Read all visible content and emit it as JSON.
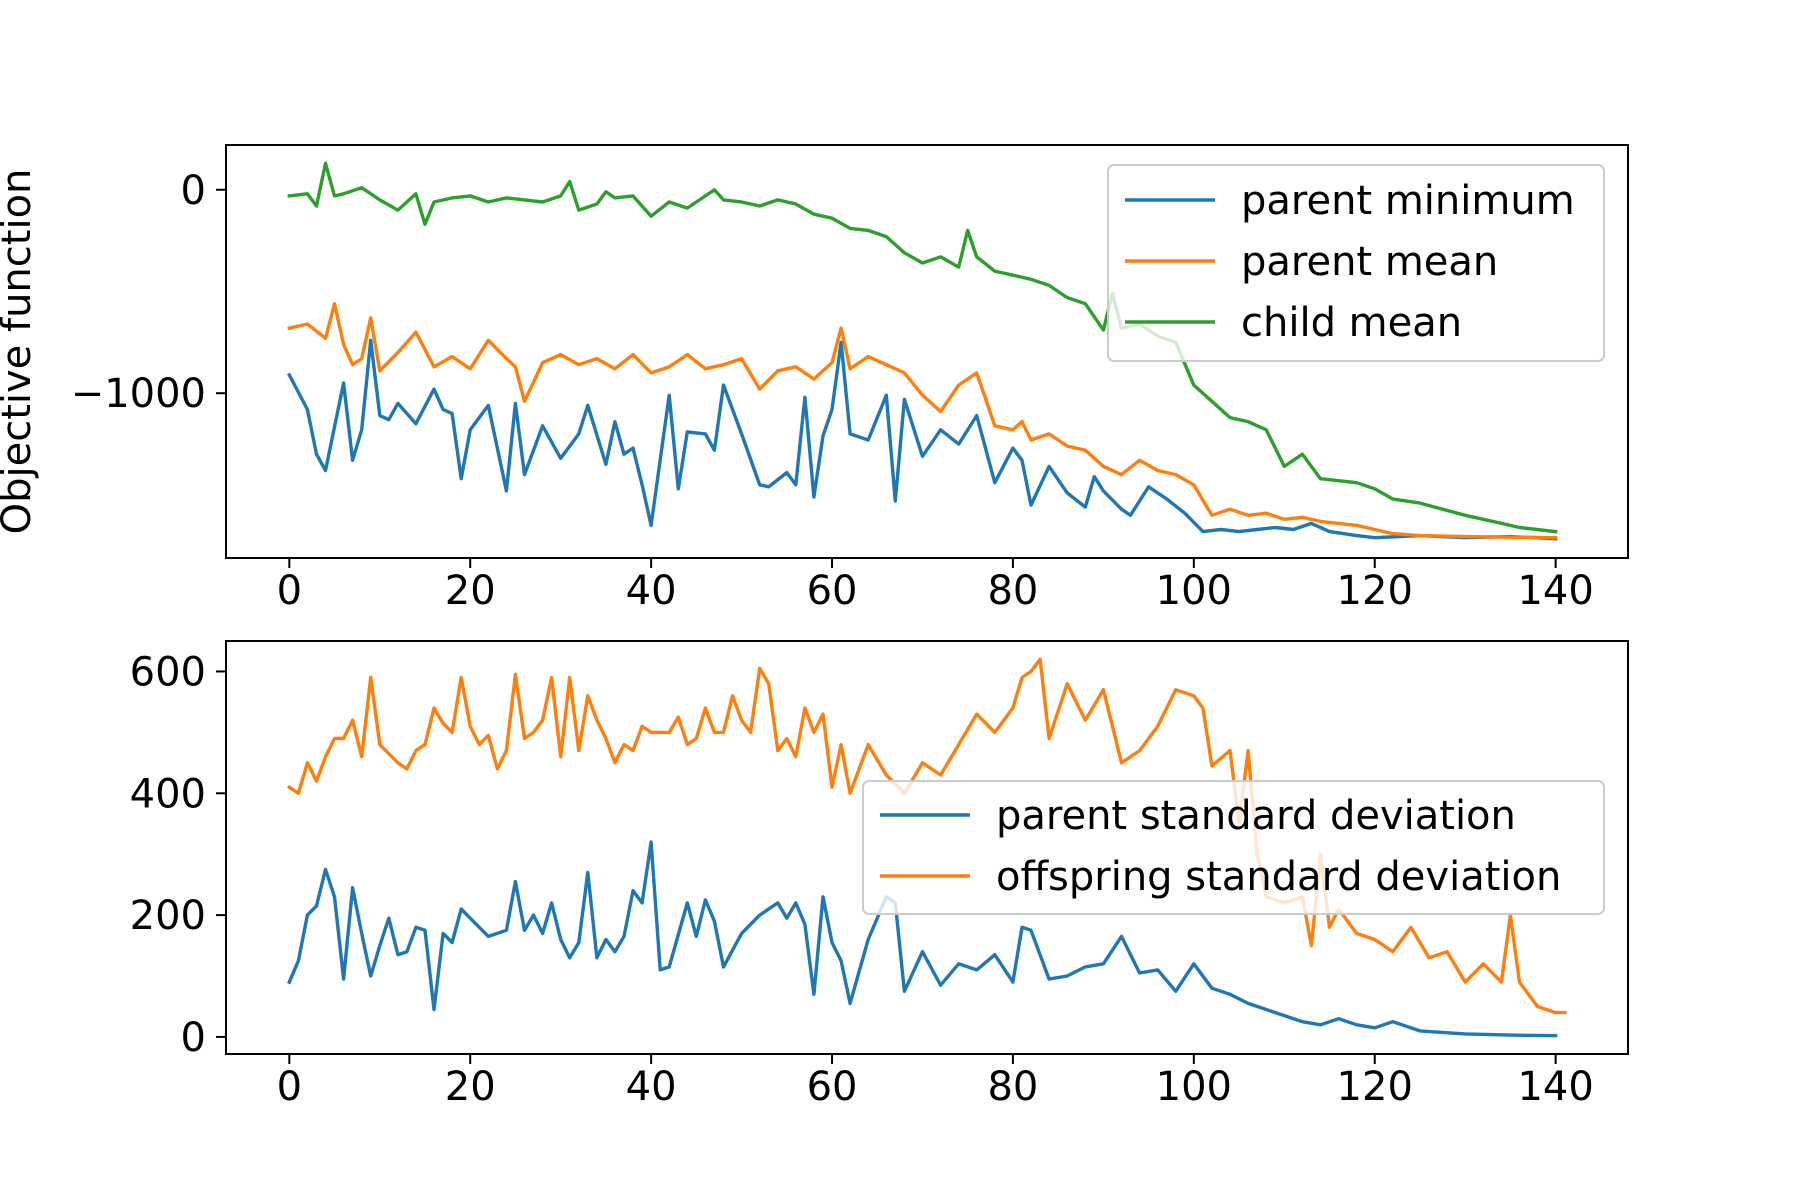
{
  "chart_data": [
    {
      "type": "line",
      "title": "",
      "xlabel": "",
      "ylabel": "Objective function",
      "xlim": [
        -7,
        148
      ],
      "ylim": [
        -1810,
        220
      ],
      "xticks": [
        0,
        20,
        40,
        60,
        80,
        100,
        120,
        140
      ],
      "yticks": [
        0,
        -1000
      ],
      "ytick_labels": [
        "0",
        "−1000"
      ],
      "grid": false,
      "legend_position": "upper right",
      "series": [
        {
          "name": "parent minimum",
          "color": "#1f77b4",
          "x": [
            0,
            2,
            3,
            4,
            6,
            7,
            8,
            9,
            10,
            11,
            12,
            14,
            16,
            17,
            18,
            19,
            20,
            22,
            24,
            25,
            26,
            28,
            30,
            32,
            33,
            35,
            36,
            37,
            38,
            39,
            40,
            42,
            43,
            44,
            46,
            47,
            48,
            50,
            52,
            53,
            55,
            56,
            57,
            58,
            59,
            60,
            61,
            62,
            64,
            66,
            67,
            68,
            70,
            72,
            74,
            76,
            78,
            80,
            81,
            82,
            84,
            86,
            88,
            89,
            90,
            92,
            93,
            95,
            97,
            99,
            101,
            103,
            105,
            107,
            109,
            111,
            113,
            115,
            118,
            120,
            125,
            130,
            135,
            140
          ],
          "values": [
            -910,
            -1080,
            -1300,
            -1380,
            -950,
            -1330,
            -1180,
            -740,
            -1110,
            -1130,
            -1050,
            -1150,
            -980,
            -1080,
            -1100,
            -1420,
            -1180,
            -1060,
            -1480,
            -1050,
            -1400,
            -1160,
            -1320,
            -1200,
            -1060,
            -1350,
            -1140,
            -1300,
            -1270,
            -1450,
            -1650,
            -1010,
            -1470,
            -1190,
            -1200,
            -1280,
            -960,
            -1200,
            -1450,
            -1460,
            -1390,
            -1450,
            -1020,
            -1510,
            -1210,
            -1080,
            -750,
            -1200,
            -1230,
            -1010,
            -1530,
            -1030,
            -1310,
            -1180,
            -1250,
            -1110,
            -1440,
            -1270,
            -1330,
            -1550,
            -1360,
            -1490,
            -1560,
            -1410,
            -1480,
            -1570,
            -1600,
            -1460,
            -1520,
            -1590,
            -1680,
            -1670,
            -1680,
            -1670,
            -1660,
            -1670,
            -1640,
            -1680,
            -1700,
            -1710,
            -1700,
            -1710,
            -1705,
            -1715
          ]
        },
        {
          "name": "parent mean",
          "color": "#ff7f0e",
          "x": [
            0,
            2,
            4,
            5,
            6,
            7,
            8,
            9,
            10,
            12,
            14,
            16,
            18,
            20,
            22,
            24,
            25,
            26,
            28,
            30,
            32,
            34,
            36,
            38,
            40,
            42,
            44,
            46,
            48,
            50,
            52,
            54,
            56,
            58,
            60,
            61,
            62,
            64,
            66,
            68,
            70,
            72,
            74,
            76,
            78,
            80,
            81,
            82,
            84,
            86,
            88,
            90,
            92,
            94,
            96,
            98,
            100,
            102,
            104,
            106,
            108,
            110,
            112,
            114,
            116,
            118,
            120,
            122,
            125,
            130,
            135,
            140
          ],
          "values": [
            -680,
            -660,
            -730,
            -560,
            -760,
            -860,
            -830,
            -630,
            -890,
            -800,
            -700,
            -870,
            -820,
            -880,
            -740,
            -830,
            -870,
            -1040,
            -850,
            -810,
            -860,
            -830,
            -880,
            -810,
            -900,
            -870,
            -810,
            -880,
            -860,
            -830,
            -980,
            -890,
            -870,
            -930,
            -850,
            -680,
            -880,
            -820,
            -860,
            -900,
            -1010,
            -1090,
            -960,
            -900,
            -1160,
            -1180,
            -1140,
            -1230,
            -1200,
            -1260,
            -1280,
            -1360,
            -1400,
            -1330,
            -1380,
            -1400,
            -1450,
            -1600,
            -1570,
            -1600,
            -1590,
            -1620,
            -1610,
            -1630,
            -1640,
            -1650,
            -1670,
            -1690,
            -1700,
            -1705,
            -1708,
            -1710
          ]
        },
        {
          "name": "child mean",
          "color": "#2ca02c",
          "x": [
            0,
            2,
            3,
            4,
            5,
            6,
            8,
            10,
            12,
            14,
            15,
            16,
            18,
            20,
            22,
            24,
            26,
            28,
            30,
            31,
            32,
            34,
            35,
            36,
            38,
            40,
            42,
            44,
            46,
            47,
            48,
            50,
            52,
            54,
            56,
            58,
            60,
            62,
            64,
            66,
            68,
            70,
            72,
            74,
            75,
            76,
            78,
            80,
            82,
            84,
            86,
            88,
            90,
            91,
            92,
            94,
            96,
            98,
            100,
            102,
            104,
            106,
            108,
            110,
            112,
            114,
            116,
            118,
            120,
            122,
            125,
            130,
            132,
            134,
            136,
            140
          ],
          "values": [
            -30,
            -20,
            -80,
            130,
            -30,
            -20,
            10,
            -50,
            -100,
            -20,
            -170,
            -60,
            -40,
            -30,
            -60,
            -40,
            -50,
            -60,
            -30,
            40,
            -100,
            -70,
            -10,
            -40,
            -30,
            -130,
            -60,
            -90,
            -30,
            0,
            -50,
            -60,
            -80,
            -50,
            -70,
            -120,
            -140,
            -190,
            -200,
            -230,
            -310,
            -360,
            -330,
            -380,
            -200,
            -330,
            -400,
            -420,
            -440,
            -470,
            -530,
            -560,
            -690,
            -510,
            -680,
            -660,
            -720,
            -750,
            -960,
            -1040,
            -1120,
            -1140,
            -1180,
            -1360,
            -1300,
            -1420,
            -1430,
            -1440,
            -1470,
            -1520,
            -1540,
            -1600,
            -1620,
            -1640,
            -1660,
            -1680
          ]
        }
      ]
    },
    {
      "type": "line",
      "title": "",
      "xlabel": "",
      "ylabel": "",
      "xlim": [
        -7,
        148
      ],
      "ylim": [
        -28,
        650
      ],
      "xticks": [
        0,
        20,
        40,
        60,
        80,
        100,
        120,
        140
      ],
      "yticks": [
        0,
        200,
        400,
        600
      ],
      "ytick_labels": [
        "0",
        "200",
        "400",
        "600"
      ],
      "grid": false,
      "legend_position": "center right",
      "series": [
        {
          "name": "parent standard deviation",
          "color": "#1f77b4",
          "x": [
            0,
            1,
            2,
            3,
            4,
            5,
            6,
            7,
            8,
            9,
            10,
            11,
            12,
            13,
            14,
            15,
            16,
            17,
            18,
            19,
            20,
            22,
            24,
            25,
            26,
            27,
            28,
            29,
            30,
            31,
            32,
            33,
            34,
            35,
            36,
            37,
            38,
            39,
            40,
            41,
            42,
            44,
            45,
            46,
            47,
            48,
            50,
            52,
            54,
            55,
            56,
            57,
            58,
            59,
            60,
            61,
            62,
            64,
            66,
            67,
            68,
            70,
            72,
            74,
            76,
            78,
            80,
            81,
            82,
            84,
            86,
            88,
            90,
            92,
            94,
            96,
            98,
            100,
            102,
            104,
            106,
            108,
            110,
            112,
            114,
            116,
            118,
            120,
            122,
            125,
            130,
            135,
            140
          ],
          "values": [
            90,
            125,
            200,
            215,
            275,
            230,
            95,
            245,
            170,
            100,
            150,
            195,
            135,
            140,
            180,
            175,
            45,
            170,
            155,
            210,
            195,
            165,
            175,
            255,
            175,
            200,
            170,
            220,
            160,
            130,
            155,
            270,
            130,
            160,
            140,
            165,
            240,
            220,
            320,
            110,
            115,
            220,
            165,
            225,
            190,
            115,
            170,
            200,
            220,
            195,
            220,
            185,
            70,
            230,
            155,
            125,
            55,
            160,
            230,
            220,
            75,
            140,
            85,
            120,
            110,
            135,
            90,
            180,
            175,
            95,
            100,
            115,
            120,
            165,
            105,
            110,
            75,
            120,
            80,
            70,
            55,
            45,
            35,
            25,
            20,
            30,
            20,
            15,
            25,
            10,
            5,
            3,
            2
          ]
        },
        {
          "name": "offspring standard deviation",
          "color": "#ff7f0e",
          "x": [
            0,
            1,
            2,
            3,
            4,
            5,
            6,
            7,
            8,
            9,
            10,
            11,
            12,
            13,
            14,
            15,
            16,
            17,
            18,
            19,
            20,
            21,
            22,
            23,
            24,
            25,
            26,
            27,
            28,
            29,
            30,
            31,
            32,
            33,
            34,
            35,
            36,
            37,
            38,
            39,
            40,
            41,
            42,
            43,
            44,
            45,
            46,
            47,
            48,
            49,
            50,
            51,
            52,
            53,
            54,
            55,
            56,
            57,
            58,
            59,
            60,
            61,
            62,
            64,
            66,
            68,
            70,
            72,
            74,
            76,
            78,
            80,
            81,
            82,
            83,
            84,
            86,
            88,
            90,
            92,
            94,
            96,
            98,
            100,
            101,
            102,
            104,
            105,
            106,
            107,
            108,
            110,
            112,
            113,
            114,
            115,
            116,
            118,
            120,
            122,
            124,
            126,
            128,
            130,
            132,
            134,
            135,
            136,
            138,
            140,
            141
          ],
          "values": [
            410,
            400,
            450,
            420,
            460,
            490,
            490,
            520,
            460,
            590,
            480,
            465,
            450,
            440,
            470,
            480,
            540,
            515,
            500,
            590,
            510,
            480,
            495,
            440,
            470,
            595,
            490,
            500,
            520,
            590,
            460,
            590,
            470,
            560,
            520,
            490,
            450,
            480,
            470,
            510,
            500,
            500,
            500,
            525,
            480,
            490,
            540,
            500,
            500,
            560,
            520,
            500,
            605,
            580,
            470,
            490,
            460,
            540,
            500,
            530,
            410,
            480,
            400,
            480,
            430,
            400,
            450,
            430,
            480,
            530,
            500,
            540,
            590,
            600,
            620,
            490,
            580,
            520,
            570,
            450,
            470,
            510,
            570,
            560,
            540,
            445,
            470,
            350,
            470,
            300,
            230,
            220,
            230,
            150,
            300,
            180,
            210,
            170,
            160,
            140,
            180,
            130,
            140,
            90,
            120,
            90,
            200,
            90,
            50,
            40,
            40
          ]
        }
      ]
    }
  ]
}
